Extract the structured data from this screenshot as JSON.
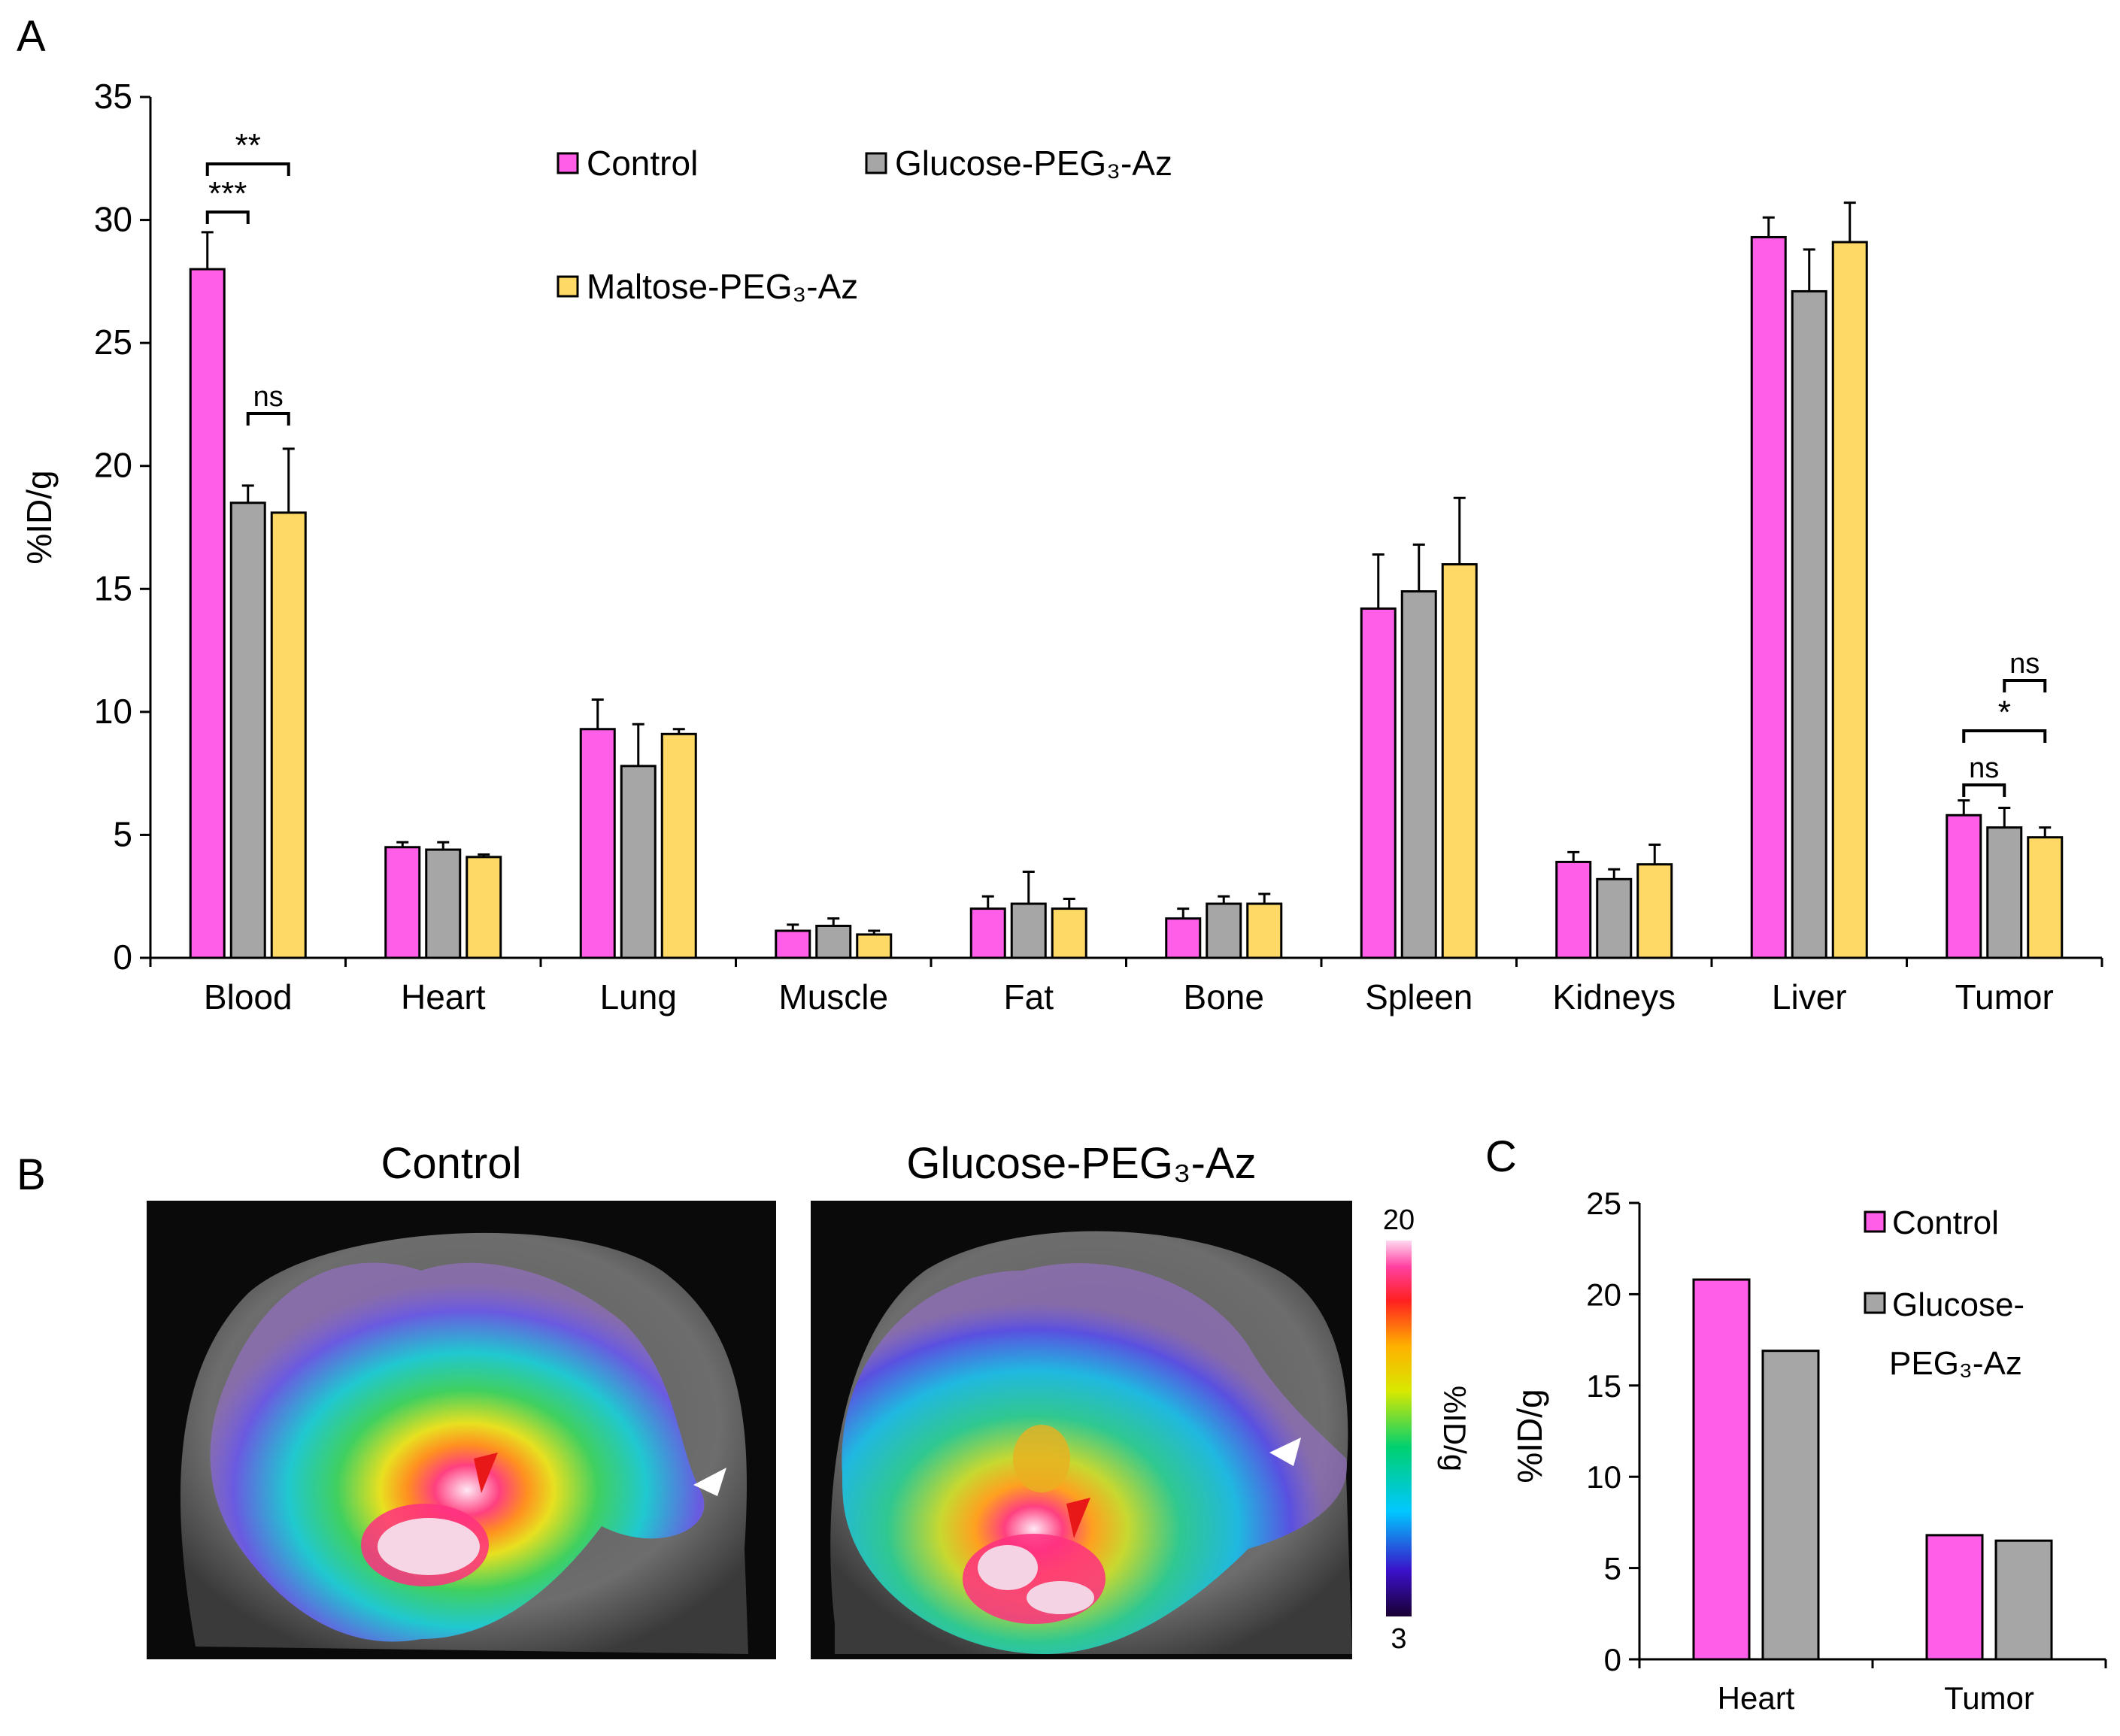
{
  "panel_labels": {
    "a": "A",
    "b": "B",
    "c": "C"
  },
  "colors": {
    "control": "#FF5EE8",
    "glucose": "#A6A6A6",
    "maltose": "#FFD966"
  },
  "chart_data": [
    {
      "id": "A",
      "type": "bar",
      "title": "",
      "xlabel": "",
      "ylabel": "%ID/g",
      "ylim": [
        0,
        35
      ],
      "yticks": [
        "0",
        "5",
        "10",
        "15",
        "20",
        "25",
        "30",
        "35"
      ],
      "categories": [
        "Blood",
        "Heart",
        "Lung",
        "Muscle",
        "Fat",
        "Bone",
        "Spleen",
        "Kidneys",
        "Liver",
        "Tumor"
      ],
      "series": [
        {
          "name": "Control",
          "color": "#FF5EE8",
          "values": [
            28.0,
            4.5,
            9.3,
            1.1,
            2.0,
            1.6,
            14.2,
            3.9,
            29.3,
            5.8
          ],
          "errors": [
            1.5,
            0.2,
            1.2,
            0.25,
            0.5,
            0.4,
            2.2,
            0.4,
            0.8,
            0.6
          ]
        },
        {
          "name": "Glucose-PEG₃-Az",
          "color": "#A6A6A6",
          "values": [
            18.5,
            4.4,
            7.8,
            1.3,
            2.2,
            2.2,
            14.9,
            3.2,
            27.1,
            5.3
          ],
          "errors": [
            0.7,
            0.3,
            1.7,
            0.3,
            1.3,
            0.3,
            1.9,
            0.4,
            1.7,
            0.8
          ]
        },
        {
          "name": "Maltose-PEG₃-Az",
          "color": "#FFD966",
          "values": [
            18.1,
            4.1,
            9.1,
            0.95,
            2.0,
            2.2,
            16.0,
            3.8,
            29.1,
            4.9
          ],
          "errors": [
            2.6,
            0.1,
            0.2,
            0.15,
            0.4,
            0.4,
            2.7,
            0.8,
            1.6,
            0.4
          ]
        }
      ],
      "legend": {
        "placement": "top",
        "labels": [
          "Control",
          "Glucose-PEG₃-Az",
          "Maltose-PEG₃-Az"
        ]
      },
      "annotations": [
        {
          "category": "Blood",
          "from": 0,
          "to": 2,
          "label": "**"
        },
        {
          "category": "Blood",
          "from": 0,
          "to": 1,
          "label": "***"
        },
        {
          "category": "Blood",
          "from": 1,
          "to": 2,
          "label": "ns"
        },
        {
          "category": "Tumor",
          "from": 1,
          "to": 2,
          "label": "ns"
        },
        {
          "category": "Tumor",
          "from": 0,
          "to": 2,
          "label": "*"
        },
        {
          "category": "Tumor",
          "from": 0,
          "to": 1,
          "label": "ns"
        }
      ]
    },
    {
      "id": "C",
      "type": "bar",
      "title": "",
      "xlabel": "",
      "ylabel": "%ID/g",
      "ylim": [
        0,
        25
      ],
      "yticks": [
        "0",
        "5",
        "10",
        "15",
        "20",
        "25"
      ],
      "categories": [
        "Heart",
        "Tumor"
      ],
      "series": [
        {
          "name": "Control",
          "color": "#FF5EE8",
          "values": [
            20.8,
            6.8
          ]
        },
        {
          "name": "Glucose-PEG₃-Az",
          "color": "#A6A6A6",
          "values": [
            16.9,
            6.5
          ]
        }
      ],
      "legend": {
        "placement": "top-right",
        "labels": [
          "Control",
          "Glucose-",
          "PEG₃-Az"
        ]
      }
    }
  ],
  "panel_b": {
    "images": [
      {
        "title": "Control"
      },
      {
        "title": "Glucose-PEG₃-Az"
      }
    ],
    "colorbar": {
      "max": "20",
      "min": "3",
      "label": "%ID/g"
    }
  }
}
